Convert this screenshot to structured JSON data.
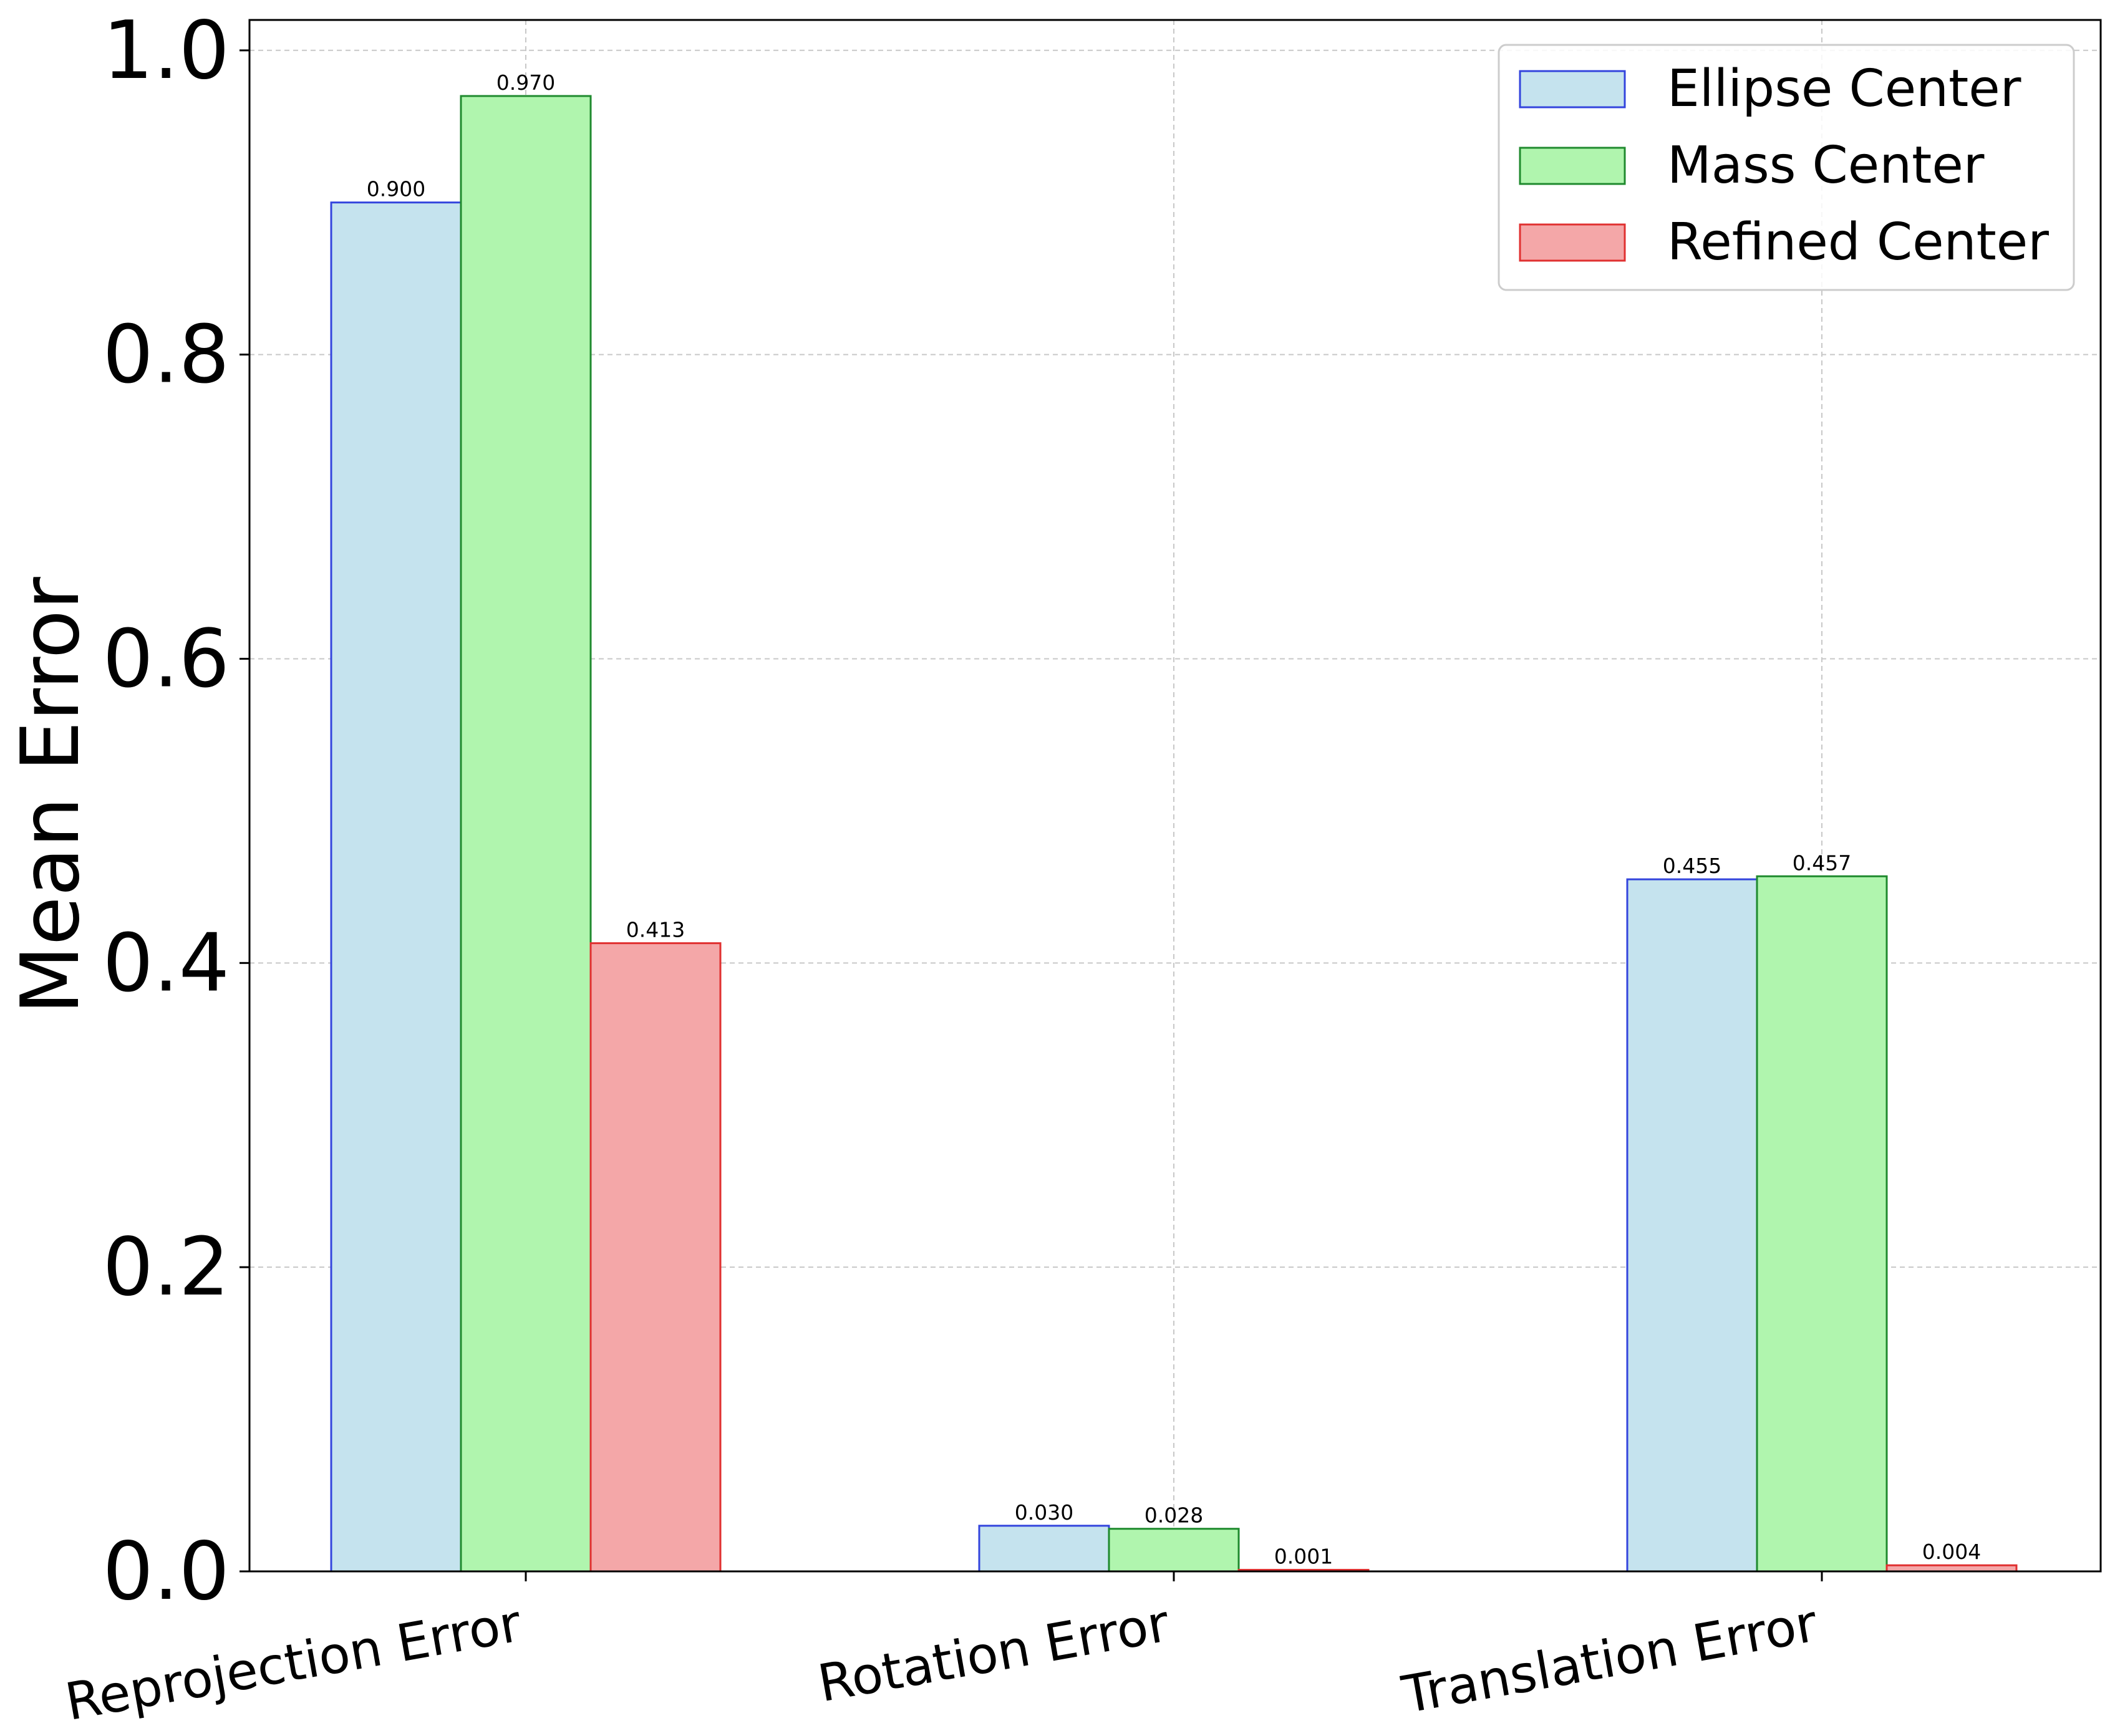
{
  "chart_data": {
    "type": "bar",
    "title": "",
    "xlabel": "",
    "ylabel": "Mean Error",
    "ylim": [
      0,
      1.02
    ],
    "yticks": [
      0.0,
      0.2,
      0.4,
      0.6,
      0.8,
      1.0
    ],
    "ytick_labels": [
      "0.0",
      "0.2",
      "0.4",
      "0.6",
      "0.8",
      "1.0"
    ],
    "categories": [
      "Reprojection Error",
      "Rotation Error",
      "Translation Error"
    ],
    "grid": true,
    "legend_position": "top-right",
    "series": [
      {
        "name": "Ellipse Center",
        "values": [
          0.9,
          0.03,
          0.455
        ],
        "labels": [
          "0.900",
          "0.030",
          "0.455"
        ],
        "fill": "#c5e3ee",
        "stroke": "#3344dd"
      },
      {
        "name": "Mass Center",
        "values": [
          0.97,
          0.028,
          0.457
        ],
        "labels": [
          "0.970",
          "0.028",
          "0.457"
        ],
        "fill": "#b0f5ae",
        "stroke": "#1f8a2e"
      },
      {
        "name": "Refined Center",
        "values": [
          0.413,
          0.001,
          0.004
        ],
        "labels": [
          "0.413",
          "0.001",
          "0.004"
        ],
        "fill": "#f4a7a8",
        "stroke": "#e03030"
      }
    ]
  }
}
